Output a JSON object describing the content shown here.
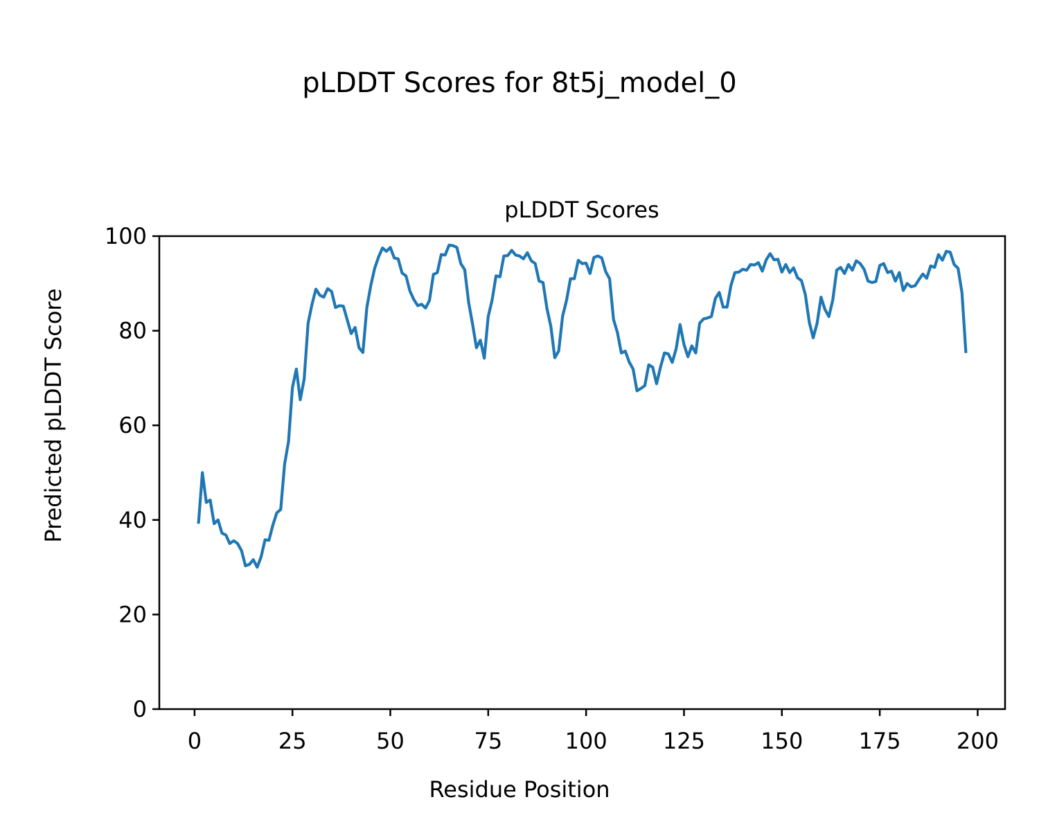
{
  "chart_data": {
    "type": "line",
    "suptitle": "pLDDT Scores for 8t5j_model_0",
    "title": "pLDDT Scores",
    "xlabel": "Residue Position",
    "ylabel": "Predicted pLDDT Score",
    "xlim": [
      -9,
      207
    ],
    "ylim": [
      0,
      100
    ],
    "xticks": [
      0,
      25,
      50,
      75,
      100,
      125,
      150,
      175,
      200
    ],
    "yticks": [
      0,
      20,
      40,
      60,
      80,
      100
    ],
    "grid": false,
    "color": "#1f77b4",
    "x_start": 1,
    "values": [
      39.2,
      50.0,
      43.7,
      44.2,
      39.2,
      40.0,
      37.2,
      36.8,
      35.0,
      35.6,
      35.0,
      33.5,
      30.3,
      30.6,
      31.6,
      30.0,
      32.2,
      35.8,
      35.7,
      38.9,
      41.5,
      42.2,
      51.8,
      56.6,
      68.0,
      71.9,
      65.4,
      69.8,
      81.6,
      85.6,
      88.8,
      87.5,
      87.1,
      88.9,
      88.3,
      84.9,
      85.3,
      85.2,
      82.3,
      79.4,
      80.7,
      76.4,
      75.4,
      84.9,
      89.5,
      93.2,
      95.6,
      97.5,
      96.8,
      97.6,
      95.4,
      95.2,
      92.2,
      91.6,
      88.4,
      86.6,
      85.3,
      85.6,
      84.8,
      86.4,
      91.9,
      92.3,
      96.1,
      96.0,
      98.1,
      98.0,
      97.6,
      94.2,
      92.9,
      86.0,
      81.4,
      76.4,
      78.0,
      74.2,
      83.0,
      86.5,
      91.6,
      91.4,
      95.8,
      95.9,
      97.0,
      96.0,
      95.8,
      95.2,
      96.5,
      94.8,
      94.2,
      90.5,
      90.2,
      84.7,
      80.9,
      74.3,
      75.7,
      83.1,
      86.4,
      91.0,
      91.0,
      94.9,
      94.2,
      94.3,
      92.1,
      95.5,
      95.8,
      95.4,
      92.5,
      91.0,
      82.4,
      79.6,
      75.3,
      75.7,
      73.4,
      71.9,
      67.3,
      67.8,
      68.4,
      72.8,
      72.3,
      68.8,
      72.3,
      75.3,
      75.1,
      73.3,
      76.2,
      81.3,
      77.1,
      74.5,
      76.8,
      75.3,
      81.6,
      82.5,
      82.7,
      83.0,
      86.8,
      88.1,
      85.0,
      85.0,
      89.6,
      92.3,
      92.4,
      93.0,
      92.8,
      94.0,
      93.9,
      94.4,
      92.6,
      95.0,
      96.3,
      95.0,
      95.1,
      92.4,
      94.0,
      92.3,
      93.3,
      91.2,
      90.6,
      87.6,
      81.8,
      78.5,
      81.6,
      87.1,
      84.5,
      83.0,
      86.5,
      92.8,
      93.4,
      92.1,
      94.0,
      92.8,
      94.8,
      94.2,
      93.0,
      90.5,
      90.2,
      90.4,
      93.8,
      94.2,
      92.3,
      92.6,
      90.5,
      92.3,
      88.5,
      90.0,
      89.3,
      89.5,
      90.8,
      92.0,
      91.1,
      93.7,
      93.4,
      96.1,
      94.9,
      96.8,
      96.6,
      94.0,
      93.2,
      88.0,
      75.3
    ]
  }
}
